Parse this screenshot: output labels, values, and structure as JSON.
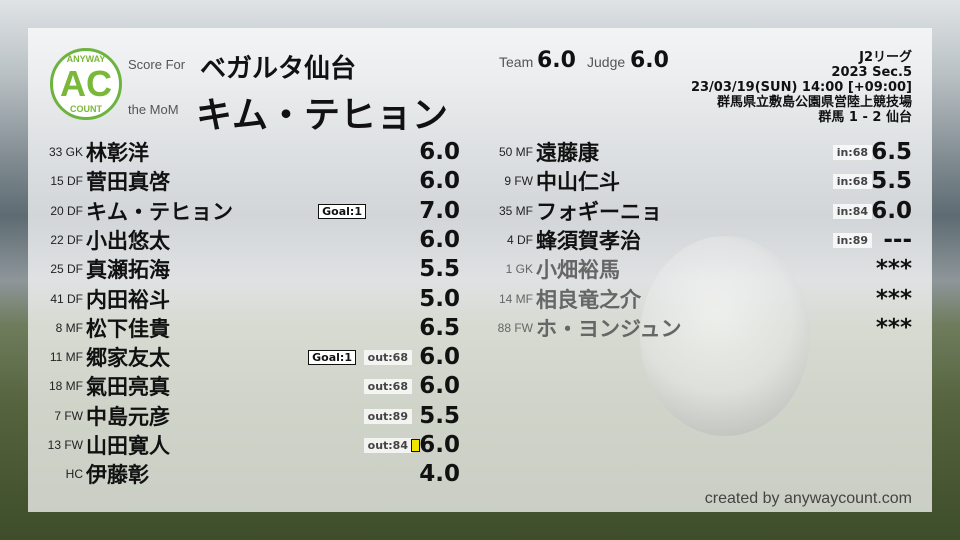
{
  "logo": {
    "top": "ANYWAY",
    "mid": "AC",
    "bottom": "COUNT"
  },
  "header": {
    "score_for_label": "Score For",
    "team": "ベガルタ仙台",
    "mom_label": "the MoM",
    "mom": "キム・テヒョン",
    "team_label": "Team",
    "team_score": "6.0",
    "judge_label": "Judge",
    "judge_score": "6.0"
  },
  "match": {
    "league": "J2リーグ",
    "section": "2023 Sec.5",
    "datetime": "23/03/19(SUN) 14:00 [+09:00]",
    "venue": "群馬県立敷島公園県営陸上競技場",
    "result": "群馬 1 - 2 仙台"
  },
  "colors": {
    "accent": "#6cb33f",
    "yellow_card": "#f2e600"
  },
  "left": [
    {
      "num": "33 GK",
      "name": "林彰洋",
      "score": "6.0"
    },
    {
      "num": "15 DF",
      "name": "菅田真啓",
      "score": "6.0"
    },
    {
      "num": "20 DF",
      "name": "キム・テヒョン",
      "score": "7.0",
      "goal": "Goal:1"
    },
    {
      "num": "22 DF",
      "name": "小出悠太",
      "score": "6.0"
    },
    {
      "num": "25 DF",
      "name": "真瀬拓海",
      "score": "5.5"
    },
    {
      "num": "41 DF",
      "name": "内田裕斗",
      "score": "5.0"
    },
    {
      "num": "8 MF",
      "name": "松下佳貴",
      "score": "6.5"
    },
    {
      "num": "11 MF",
      "name": "郷家友太",
      "score": "6.0",
      "goal": "Goal:1",
      "sub": "out:68"
    },
    {
      "num": "18 MF",
      "name": "氣田亮真",
      "score": "6.0",
      "sub": "out:68"
    },
    {
      "num": "7 FW",
      "name": "中島元彦",
      "score": "5.5",
      "sub": "out:89"
    },
    {
      "num": "13 FW",
      "name": "山田寛人",
      "score": "6.0",
      "sub": "out:84",
      "card": "yellow"
    },
    {
      "num": "HC",
      "name": "伊藤彰",
      "score": "4.0"
    }
  ],
  "right": [
    {
      "num": "50 MF",
      "name": "遠藤康",
      "score": "6.5",
      "sub": "in:68"
    },
    {
      "num": "9 FW",
      "name": "中山仁斗",
      "score": "5.5",
      "sub": "in:68"
    },
    {
      "num": "35 MF",
      "name": "フォギーニョ",
      "score": "6.0",
      "sub": "in:84"
    },
    {
      "num": "4 DF",
      "name": "蜂須賀孝治",
      "score": "---",
      "sub": "in:89"
    },
    {
      "num": "1 GK",
      "name": "小畑裕馬",
      "score": "***",
      "dim": true
    },
    {
      "num": "14 MF",
      "name": "相良竜之介",
      "score": "***",
      "dim": true
    },
    {
      "num": "88 FW",
      "name": "ホ・ヨンジュン",
      "score": "***",
      "dim": true
    }
  ],
  "footer": "created by anywaycount.com"
}
